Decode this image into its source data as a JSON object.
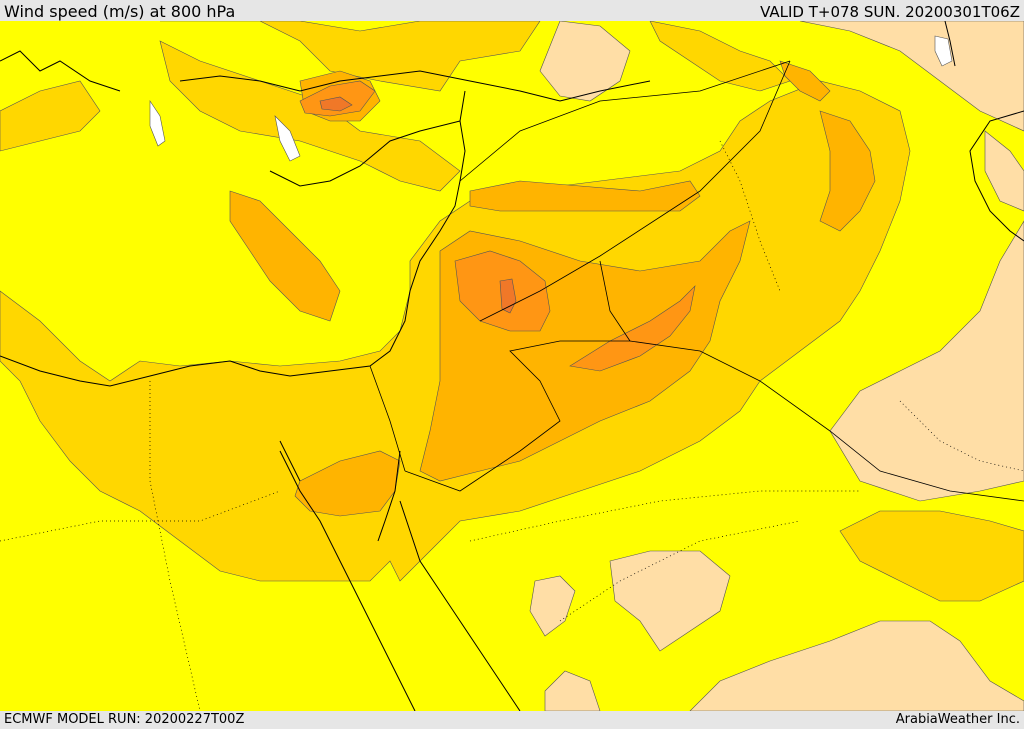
{
  "header": {
    "title": "Wind speed (m/s) at 800 hPa",
    "valid": "VALID T+078 SUN. 20200301T06Z"
  },
  "footer": {
    "model_run": "ECMWF MODEL RUN: 20200227T00Z",
    "credit": "ArabiaWeather Inc."
  },
  "map": {
    "variable": "wind speed",
    "level": "800 hPa",
    "colors": {
      "band_low": "#ffdea6",
      "band_base": "#ffff00",
      "band_mid": "#ffd700",
      "band_high": "#ffb400",
      "band_higher": "#ff9614",
      "band_peak": "#f07828",
      "coastline": "#000000",
      "borders": "#000000",
      "water_ice": "#ffffff"
    }
  }
}
